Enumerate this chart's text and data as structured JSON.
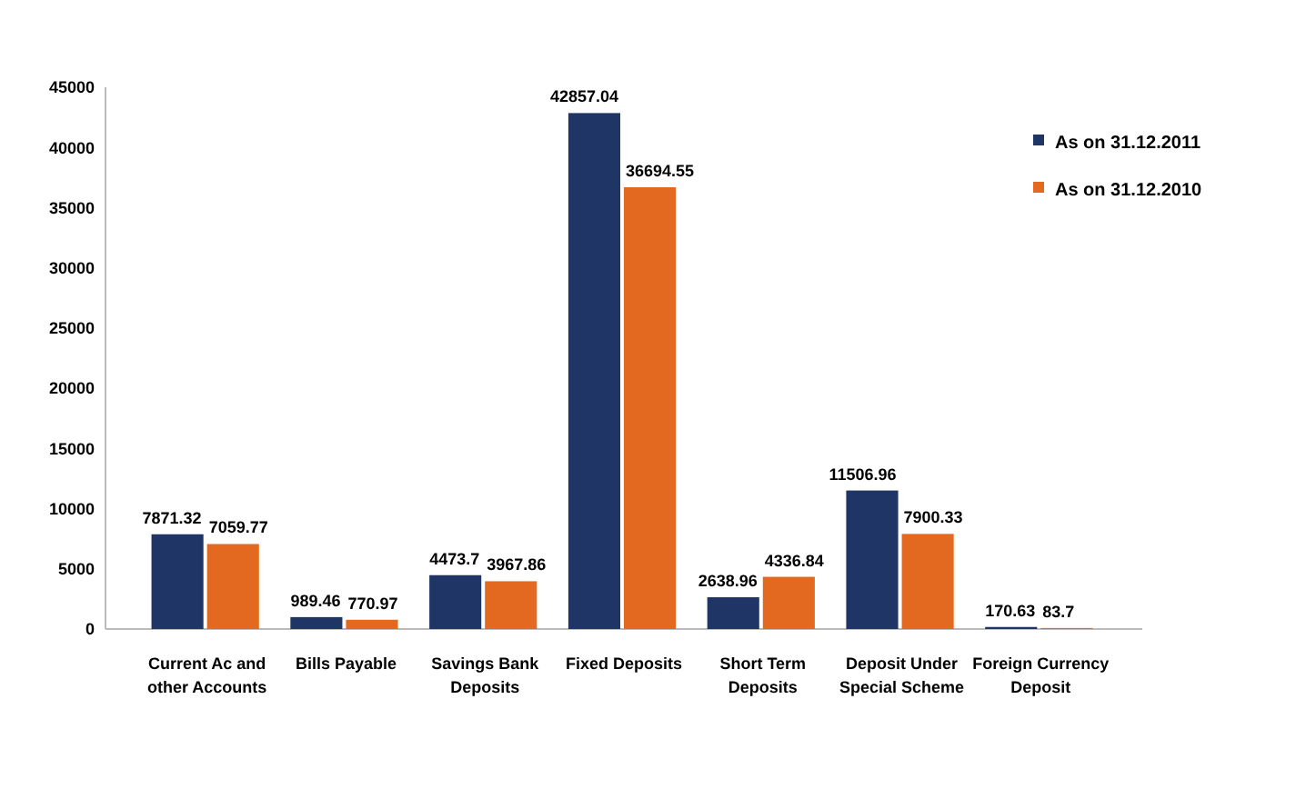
{
  "chart_data": {
    "type": "bar",
    "categories": [
      "Current Ac and other Accounts",
      "Bills Payable",
      "Savings Bank Deposits",
      "Fixed Deposits",
      "Short Term Deposits",
      "Deposit Under Special Scheme",
      "Foreign Currency Deposit"
    ],
    "series": [
      {
        "name": "As on 31.12.2011",
        "color": "#1f3566",
        "values": [
          7871.32,
          989.46,
          4473.7,
          42857.04,
          2638.96,
          11506.96,
          170.63
        ]
      },
      {
        "name": "As on 31.12.2010",
        "color": "#e2691f",
        "values": [
          7059.77,
          770.97,
          3967.86,
          36694.55,
          4336.84,
          7900.33,
          83.7
        ]
      }
    ],
    "ylim": [
      0,
      45000
    ],
    "yticks": [
      0,
      5000,
      10000,
      15000,
      20000,
      25000,
      30000,
      35000,
      40000,
      45000
    ],
    "data_labels": true,
    "legend": "top right"
  }
}
